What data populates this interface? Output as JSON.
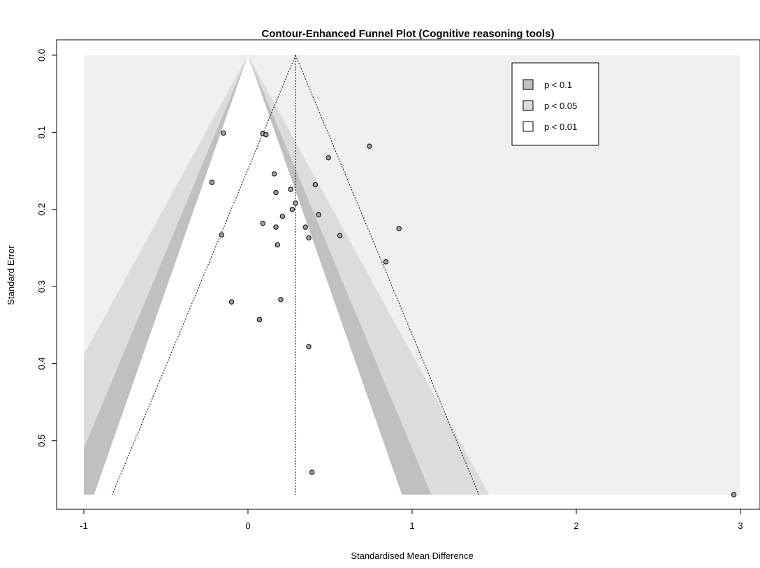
{
  "chart_data": {
    "type": "scatter",
    "title": "Contour-Enhanced Funnel Plot (Cognitive reasoning tools)",
    "xlabel": "Standardised Mean Difference",
    "ylabel": "Standard Error",
    "xlim": [
      -1.0,
      3.0
    ],
    "ylim": [
      0.57,
      0.0
    ],
    "y_reversed": true,
    "x_ticks": [
      {
        "value": -1,
        "label": "-1"
      },
      {
        "value": 0,
        "label": "0"
      },
      {
        "value": 1,
        "label": "1"
      },
      {
        "value": 2,
        "label": "2"
      },
      {
        "value": 3,
        "label": "3"
      }
    ],
    "y_ticks": [
      {
        "value": 0.0,
        "label": "0.0"
      },
      {
        "value": 0.1,
        "label": "0.1"
      },
      {
        "value": 0.2,
        "label": "0.2"
      },
      {
        "value": 0.3,
        "label": "0.3"
      },
      {
        "value": 0.4,
        "label": "0.4"
      },
      {
        "value": 0.5,
        "label": "0.5"
      }
    ],
    "pooled_estimate": 0.29,
    "contours": [
      {
        "label": "p < 0.1",
        "z": 1.645,
        "color": "#c0c0c0"
      },
      {
        "label": "p < 0.05",
        "z": 1.96,
        "color": "#dcdcdc"
      },
      {
        "label": "p < 0.01",
        "z": 2.576,
        "color": "#ffffff"
      }
    ],
    "contour_shading": [
      {
        "z": 1.645,
        "color": "#c0c0c0"
      },
      {
        "z": 1.96,
        "color": "#dcdcdc"
      },
      {
        "z": 2.576,
        "color": "#f0f0f0"
      }
    ],
    "legend_position": "top-right",
    "grid": false,
    "points": [
      {
        "x": -0.15,
        "y": 0.101
      },
      {
        "x": 0.09,
        "y": 0.102
      },
      {
        "x": 0.11,
        "y": 0.103
      },
      {
        "x": 0.74,
        "y": 0.118
      },
      {
        "x": 0.49,
        "y": 0.133
      },
      {
        "x": 0.16,
        "y": 0.154
      },
      {
        "x": -0.22,
        "y": 0.165
      },
      {
        "x": 0.41,
        "y": 0.168
      },
      {
        "x": 0.26,
        "y": 0.174
      },
      {
        "x": 0.17,
        "y": 0.178
      },
      {
        "x": 0.29,
        "y": 0.192
      },
      {
        "x": 0.27,
        "y": 0.2
      },
      {
        "x": 0.43,
        "y": 0.207
      },
      {
        "x": 0.21,
        "y": 0.209
      },
      {
        "x": 0.09,
        "y": 0.218
      },
      {
        "x": 0.35,
        "y": 0.223
      },
      {
        "x": 0.17,
        "y": 0.223
      },
      {
        "x": 0.92,
        "y": 0.225
      },
      {
        "x": -0.16,
        "y": 0.233
      },
      {
        "x": 0.56,
        "y": 0.234
      },
      {
        "x": 0.37,
        "y": 0.237
      },
      {
        "x": 0.18,
        "y": 0.246
      },
      {
        "x": 0.84,
        "y": 0.268
      },
      {
        "x": 0.2,
        "y": 0.317
      },
      {
        "x": -0.1,
        "y": 0.32
      },
      {
        "x": 0.07,
        "y": 0.343
      },
      {
        "x": 0.37,
        "y": 0.378
      },
      {
        "x": 0.39,
        "y": 0.541
      },
      {
        "x": 2.96,
        "y": 0.57
      }
    ]
  }
}
